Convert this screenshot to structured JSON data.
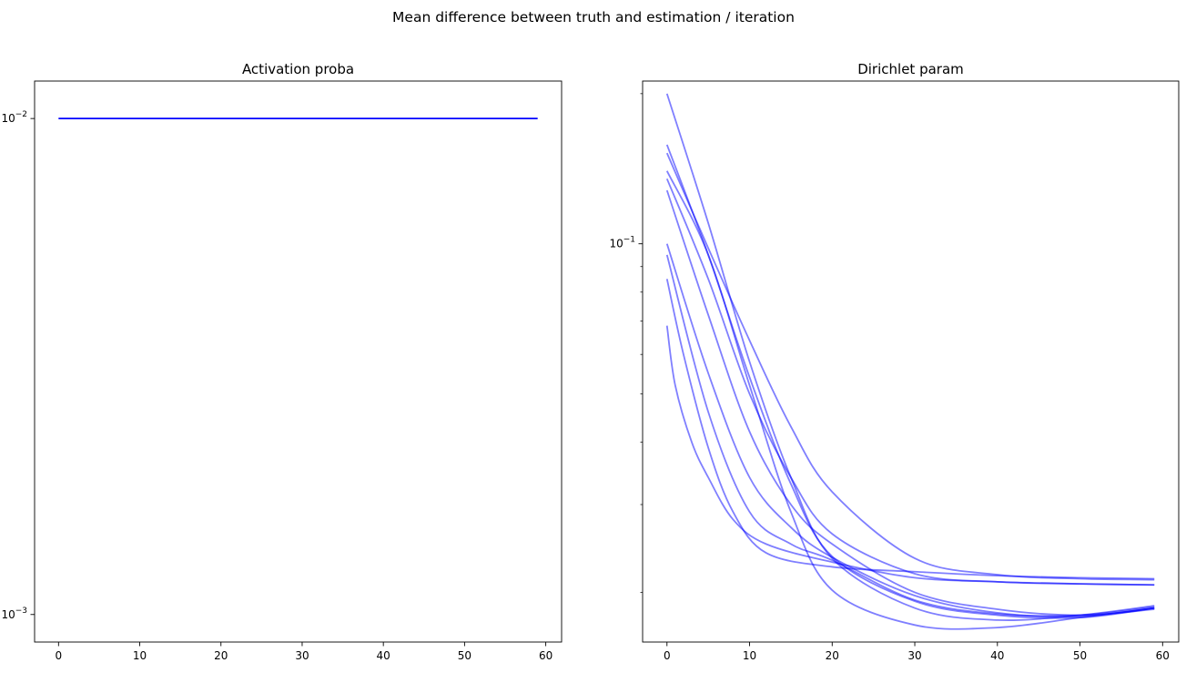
{
  "figure": {
    "suptitle": "Mean difference between truth and estimation / iteration"
  },
  "chart_data": [
    {
      "type": "line",
      "title": "Activation proba",
      "xlabel": "",
      "ylabel": "",
      "yscale": "log",
      "xlim": [
        -2.95,
        61.95
      ],
      "ylim": [
        0.00088,
        0.0119
      ],
      "xticks": [
        0,
        10,
        20,
        30,
        40,
        50,
        60
      ],
      "xtick_labels": [
        "0",
        "10",
        "20",
        "30",
        "40",
        "50",
        "60"
      ],
      "yticks": [
        0.01,
        0.001
      ],
      "ytick_labels": [
        {
          "base": "10",
          "exp": "−2"
        },
        {
          "base": "10",
          "exp": "−3"
        }
      ],
      "grid": false,
      "color": "#0000ff",
      "line_opacity": 1.0,
      "series": [
        {
          "x": [
            0,
            59
          ],
          "y": [
            0.01,
            0.01
          ]
        }
      ]
    },
    {
      "type": "line",
      "title": "Dirichlet param",
      "xlabel": "",
      "ylabel": "",
      "yscale": "log",
      "xlim": [
        -2.95,
        61.95
      ],
      "ylim": [
        0.0159,
        0.212
      ],
      "xticks": [
        0,
        10,
        20,
        30,
        40,
        50,
        60
      ],
      "xtick_labels": [
        "0",
        "10",
        "20",
        "30",
        "40",
        "50",
        "60"
      ],
      "yticks": [
        0.1
      ],
      "ytick_labels": [
        {
          "base": "10",
          "exp": "−1"
        }
      ],
      "minor_yticks": [
        0.02,
        0.03,
        0.04,
        0.05,
        0.06,
        0.07,
        0.08,
        0.09,
        0.2
      ],
      "grid": false,
      "color": "#0000ff",
      "line_opacity": 0.5,
      "series": [
        {
          "x": [
            0,
            5,
            10,
            15,
            20,
            30,
            40,
            50,
            59
          ],
          "y": [
            0.2,
            0.11,
            0.058,
            0.034,
            0.0234,
            0.0186,
            0.0176,
            0.018,
            0.0188
          ]
        },
        {
          "x": [
            0,
            5,
            10,
            15,
            20,
            30,
            40,
            50,
            59
          ],
          "y": [
            0.158,
            0.095,
            0.054,
            0.033,
            0.0236,
            0.0192,
            0.018,
            0.0178,
            0.0186
          ]
        },
        {
          "x": [
            0,
            5,
            10,
            15,
            20,
            30,
            40,
            50,
            59
          ],
          "y": [
            0.152,
            0.098,
            0.064,
            0.043,
            0.0318,
            0.0234,
            0.0217,
            0.0213,
            0.0212
          ]
        },
        {
          "x": [
            0,
            5,
            10,
            15,
            20,
            30,
            40,
            50,
            59
          ],
          "y": [
            0.14,
            0.095,
            0.052,
            0.029,
            0.0202,
            0.0172,
            0.017,
            0.0178,
            0.0186
          ]
        },
        {
          "x": [
            0,
            5,
            10,
            15,
            20,
            30,
            40,
            50,
            59
          ],
          "y": [
            0.135,
            0.085,
            0.05,
            0.034,
            0.0262,
            0.0218,
            0.021,
            0.0208,
            0.0207
          ]
        },
        {
          "x": [
            0,
            5,
            10,
            15,
            20,
            30,
            40,
            50,
            59
          ],
          "y": [
            0.128,
            0.072,
            0.042,
            0.03,
            0.025,
            0.02,
            0.0185,
            0.018,
            0.0185
          ]
        },
        {
          "x": [
            0,
            5,
            10,
            15,
            20,
            30,
            40,
            50,
            59
          ],
          "y": [
            0.1,
            0.055,
            0.034,
            0.027,
            0.0235,
            0.0197,
            0.0182,
            0.0179,
            0.0186
          ]
        },
        {
          "x": [
            0,
            5,
            10,
            15,
            20,
            30,
            40,
            50,
            59
          ],
          "y": [
            0.095,
            0.046,
            0.029,
            0.025,
            0.0232,
            0.0193,
            0.0181,
            0.018,
            0.0187
          ]
        },
        {
          "x": [
            0,
            2,
            5,
            8,
            12,
            20,
            30,
            40,
            50,
            59
          ],
          "y": [
            0.085,
            0.06,
            0.039,
            0.029,
            0.024,
            0.0225,
            0.022,
            0.0216,
            0.0214,
            0.0213
          ]
        },
        {
          "x": [
            0,
            1,
            3,
            5,
            8,
            12,
            20,
            30,
            40,
            50,
            59
          ],
          "y": [
            0.0685,
            0.052,
            0.04,
            0.034,
            0.028,
            0.025,
            0.023,
            0.0214,
            0.021,
            0.0208,
            0.0207
          ]
        }
      ]
    }
  ]
}
